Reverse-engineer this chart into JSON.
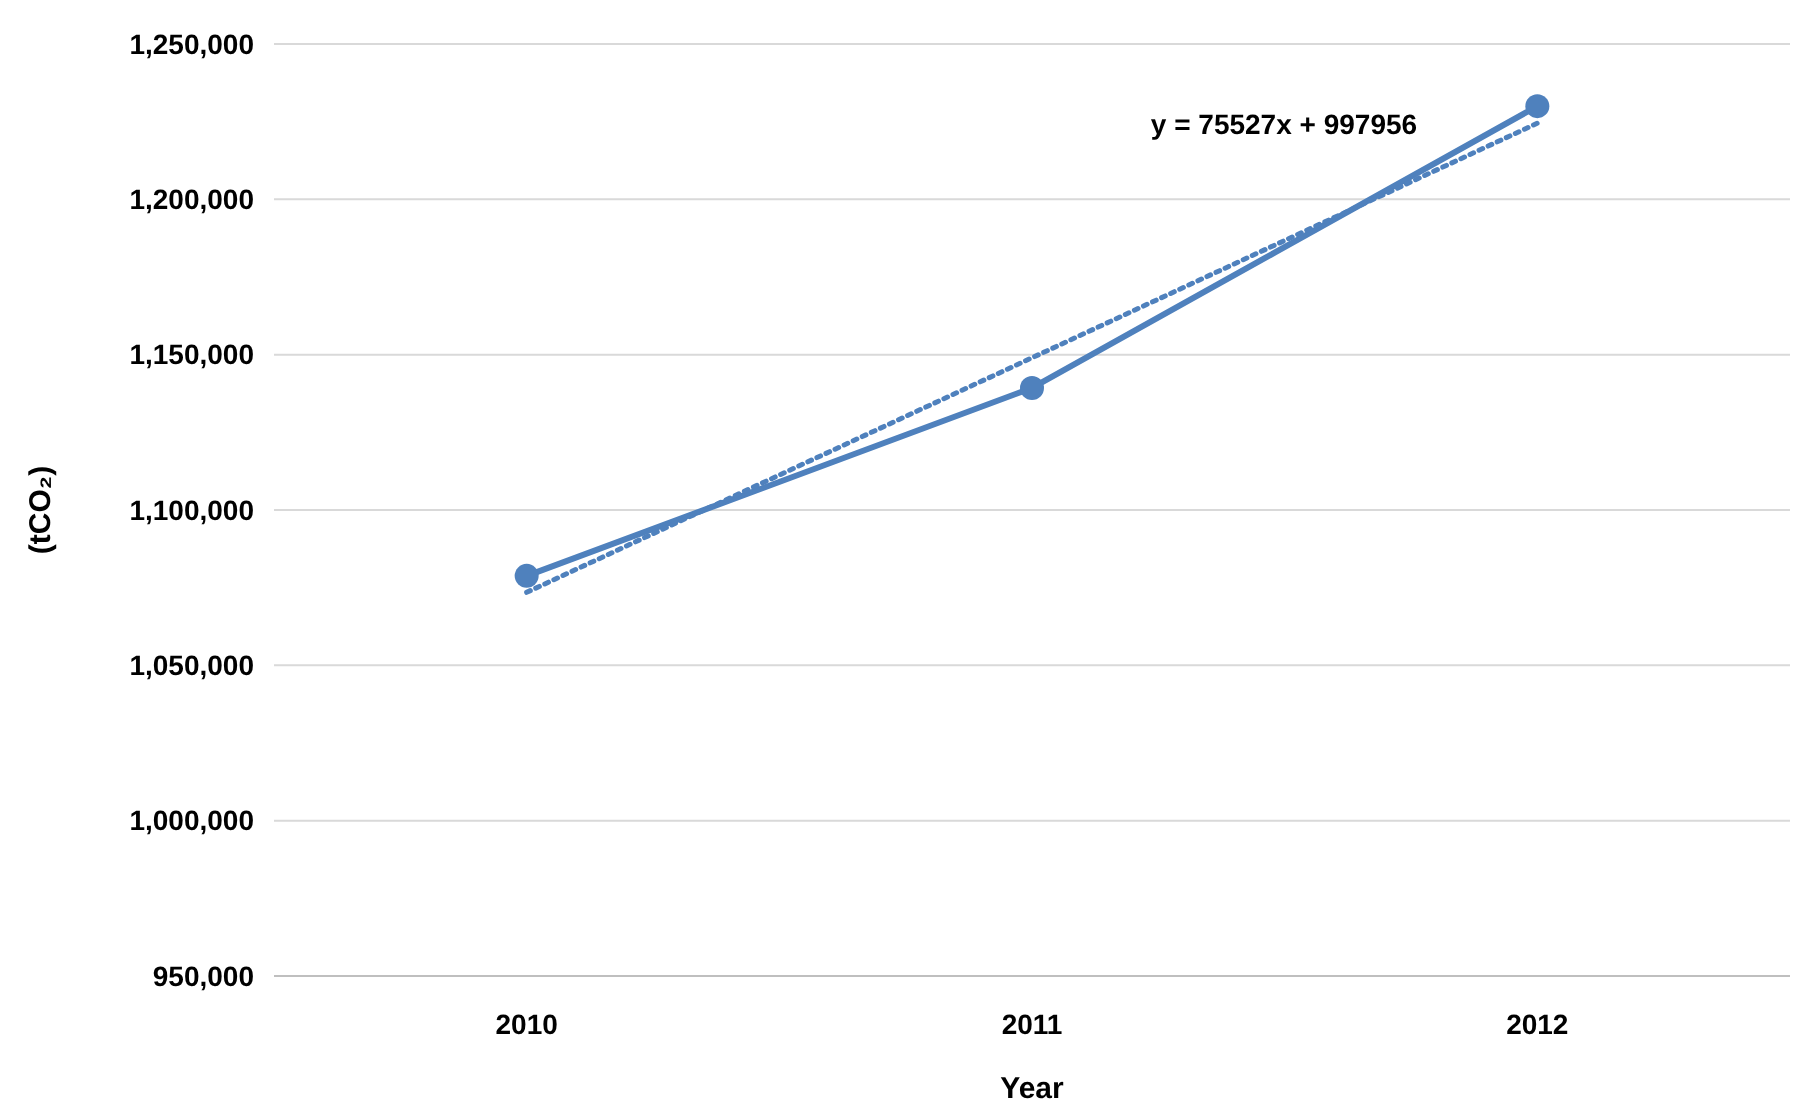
{
  "chart_data": {
    "type": "line",
    "xlabel": "Year",
    "ylabel": "(tCO₂)",
    "categories": [
      "2010",
      "2011",
      "2012"
    ],
    "series": [
      {
        "color": "#4f81bd",
        "values": [
          1078800,
          1139300,
          1230000
        ],
        "marker": "circle",
        "line_style": "solid"
      },
      {
        "type": "line",
        "color": "#4f81bd",
        "values": [
          1073500,
          1149000,
          1224500
        ],
        "marker": "none",
        "line_style": "dotted"
      }
    ],
    "ylim": [
      950000,
      1250000
    ],
    "yticks": [
      {
        "value": 950000,
        "label": "950,000"
      },
      {
        "value": 1000000,
        "label": "1,000,000"
      },
      {
        "value": 1050000,
        "label": "1,050,000"
      },
      {
        "value": 1100000,
        "label": "1,100,000"
      },
      {
        "value": 1150000,
        "label": "1,150,000"
      },
      {
        "value": 1200000,
        "label": "1,200,000"
      },
      {
        "value": 1250000,
        "label": "1,250,000"
      }
    ],
    "grid": "y",
    "annotations": [
      "y = 75527x + 997956"
    ]
  }
}
